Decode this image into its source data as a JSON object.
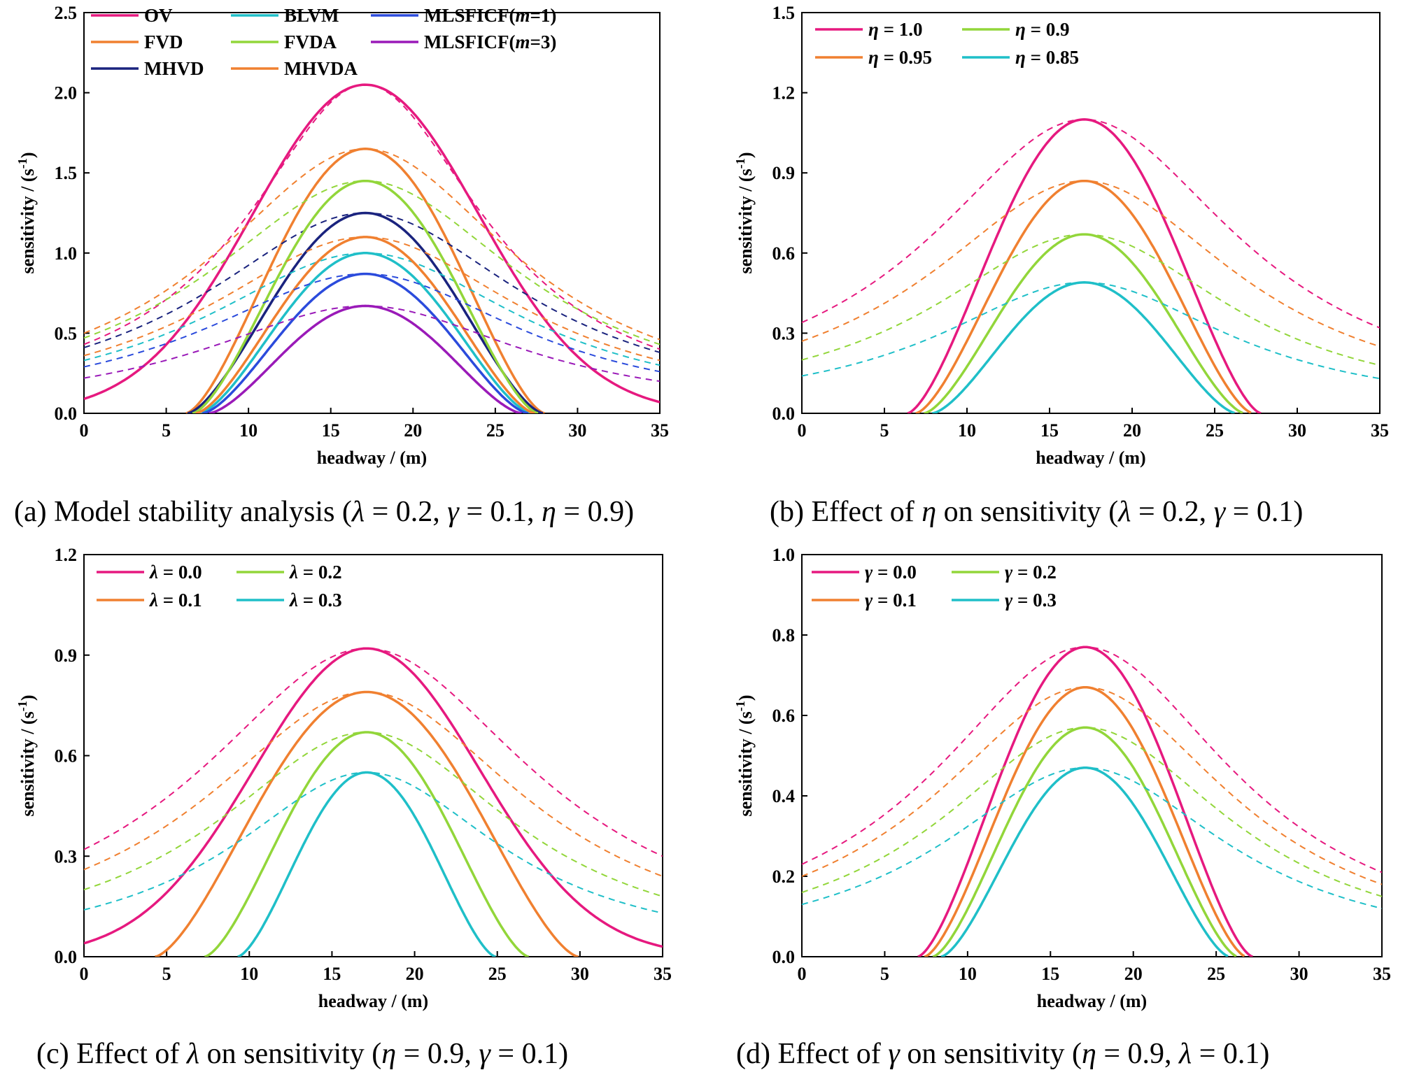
{
  "colors": {
    "pink": "#e6197f",
    "orange": "#f08030",
    "green": "#92d63a",
    "cyan": "#1fbfc8",
    "navy": "#1a237e",
    "blue": "#2b4bdc",
    "purple": "#9a1ab8"
  },
  "chart_data": [
    {
      "id": "a",
      "type": "line",
      "caption": "(a) Model stability analysis (λ = 0.2, γ = 0.1, η = 0.9)",
      "xlabel": "headway / (m)",
      "ylabel": "sensitivity / (s-1)",
      "xlim": [
        0,
        35
      ],
      "ylim": [
        0,
        2.5
      ],
      "xticks": [
        "0",
        "5",
        "10",
        "15",
        "20",
        "25",
        "30",
        "35"
      ],
      "yticks": [
        "0.0",
        "0.5",
        "1.0",
        "1.5",
        "2.0",
        "2.5"
      ],
      "grid": false,
      "legend_placement": "top-left",
      "legend_columns": 3,
      "series": [
        {
          "name": "OV",
          "color": "pink",
          "peak": 2.05,
          "root": 0,
          "solid_ends": [
            0.09,
            0.07
          ],
          "dashed_peak": 2.05,
          "dashed_ends": [
            0.43,
            0.4
          ]
        },
        {
          "name": "FVD",
          "color": "orange",
          "peak": 1.65,
          "root": 6.2,
          "dashed_peak": 1.65,
          "dashed_ends": [
            0.5,
            0.46
          ]
        },
        {
          "name": "MHVD",
          "color": "navy",
          "peak": 1.25,
          "root": 6.3,
          "dashed_peak": 1.25,
          "dashed_ends": [
            0.41,
            0.38
          ]
        },
        {
          "name": "BLVM",
          "color": "cyan",
          "peak": 1.0,
          "root": 7.0,
          "dashed_peak": 1.0,
          "dashed_ends": [
            0.33,
            0.3
          ]
        },
        {
          "name": "FVDA",
          "color": "green",
          "peak": 1.45,
          "root": 6.6,
          "dashed_peak": 1.45,
          "dashed_ends": [
            0.47,
            0.43
          ]
        },
        {
          "name": "MHVDA",
          "color": "orange",
          "peak": 1.1,
          "root": 6.8,
          "dashed_peak": 1.1,
          "dashed_ends": [
            0.36,
            0.33
          ]
        },
        {
          "name": "MLSFICF(m=1)",
          "color": "blue",
          "peak": 0.87,
          "root": 7.2,
          "dashed_peak": 0.87,
          "dashed_ends": [
            0.29,
            0.26
          ]
        },
        {
          "name": "MLSFICF(m=3)",
          "color": "purple",
          "peak": 0.67,
          "root": 7.6,
          "dashed_peak": 0.67,
          "dashed_ends": [
            0.22,
            0.2
          ]
        }
      ]
    },
    {
      "id": "b",
      "type": "line",
      "caption": "(b) Effect of η on sensitivity (λ = 0.2, γ = 0.1)",
      "xlabel": "headway / (m)",
      "ylabel": "sensitivity / (s-1)",
      "xlim": [
        0,
        35
      ],
      "ylim": [
        0,
        1.5
      ],
      "xticks": [
        "0",
        "5",
        "10",
        "15",
        "20",
        "25",
        "30",
        "35"
      ],
      "yticks": [
        "0.0",
        "0.3",
        "0.6",
        "0.9",
        "1.2",
        "1.5"
      ],
      "grid": false,
      "legend_placement": "top-left",
      "legend_columns": 2,
      "series": [
        {
          "name": "η = 1.0",
          "color": "pink",
          "peak": 1.1,
          "root": 6.4,
          "dashed_peak": 1.1,
          "dashed_ends": [
            0.34,
            0.32
          ]
        },
        {
          "name": "η = 0.95",
          "color": "orange",
          "peak": 0.87,
          "root": 6.9,
          "dashed_peak": 0.87,
          "dashed_ends": [
            0.27,
            0.25
          ]
        },
        {
          "name": "η = 0.9",
          "color": "green",
          "peak": 0.67,
          "root": 7.4,
          "dashed_peak": 0.67,
          "dashed_ends": [
            0.2,
            0.18
          ]
        },
        {
          "name": "η = 0.85",
          "color": "cyan",
          "peak": 0.49,
          "root": 7.9,
          "dashed_peak": 0.49,
          "dashed_ends": [
            0.14,
            0.13
          ]
        }
      ]
    },
    {
      "id": "c",
      "type": "line",
      "caption": "(c) Effect of λ on sensitivity (η = 0.9, γ = 0.1)",
      "xlabel": "headway / (m)",
      "ylabel": "sensitivity / (s-1)",
      "xlim": [
        0,
        35
      ],
      "ylim": [
        0,
        1.2
      ],
      "xticks": [
        "0",
        "5",
        "10",
        "15",
        "20",
        "25",
        "30",
        "35"
      ],
      "yticks": [
        "0.0",
        "0.3",
        "0.6",
        "0.9",
        "1.2"
      ],
      "grid": false,
      "legend_placement": "top-left",
      "legend_columns": 2,
      "series": [
        {
          "name": "λ = 0.0",
          "color": "pink",
          "peak": 0.92,
          "root": 0,
          "solid_ends": [
            0.04,
            0.03
          ],
          "dashed_peak": 0.92,
          "dashed_ends": [
            0.32,
            0.3
          ]
        },
        {
          "name": "λ = 0.1",
          "color": "orange",
          "peak": 0.79,
          "root": 4.3,
          "dashed_peak": 0.79,
          "dashed_ends": [
            0.26,
            0.24
          ]
        },
        {
          "name": "λ = 0.2",
          "color": "green",
          "peak": 0.67,
          "root": 7.3,
          "dashed_peak": 0.67,
          "dashed_ends": [
            0.2,
            0.18
          ]
        },
        {
          "name": "λ = 0.3",
          "color": "cyan",
          "peak": 0.55,
          "root": 9.3,
          "dashed_peak": 0.55,
          "dashed_ends": [
            0.14,
            0.13
          ]
        }
      ]
    },
    {
      "id": "d",
      "type": "line",
      "caption": "(d) Effect of γ on sensitivity (η = 0.9, λ = 0.1)",
      "xlabel": "headway / (m)",
      "ylabel": "sensitivity / (s-1)",
      "xlim": [
        0,
        35
      ],
      "ylim": [
        0,
        1.0
      ],
      "xticks": [
        "0",
        "5",
        "10",
        "15",
        "20",
        "25",
        "30",
        "35"
      ],
      "yticks": [
        "0.0",
        "0.2",
        "0.4",
        "0.6",
        "0.8",
        "1.0"
      ],
      "grid": false,
      "legend_placement": "top-left",
      "legend_columns": 2,
      "series": [
        {
          "name": "γ = 0.0",
          "color": "pink",
          "peak": 0.77,
          "root": 7.0,
          "dashed_peak": 0.77,
          "dashed_ends": [
            0.23,
            0.21
          ]
        },
        {
          "name": "γ = 0.1",
          "color": "orange",
          "peak": 0.67,
          "root": 7.4,
          "dashed_peak": 0.67,
          "dashed_ends": [
            0.2,
            0.18
          ]
        },
        {
          "name": "γ = 0.2",
          "color": "green",
          "peak": 0.57,
          "root": 7.9,
          "dashed_peak": 0.57,
          "dashed_ends": [
            0.16,
            0.15
          ]
        },
        {
          "name": "γ = 0.3",
          "color": "cyan",
          "peak": 0.47,
          "root": 8.4,
          "dashed_peak": 0.47,
          "dashed_ends": [
            0.13,
            0.12
          ]
        }
      ]
    }
  ]
}
